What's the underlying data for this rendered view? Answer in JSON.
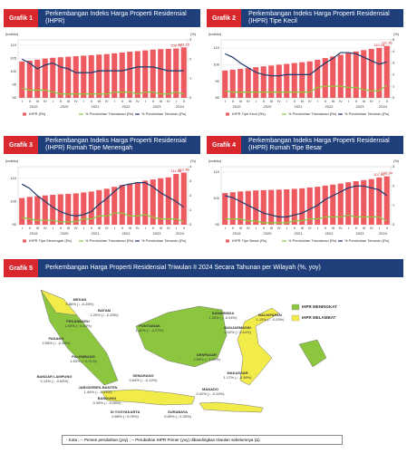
{
  "chart_data": [
    {
      "type": "combo",
      "label": "Grafik 1",
      "title": "Perkembangan Indeks Harga Properti Residensial (IHPR)",
      "ylabel": "(indeks)",
      "y2label": "(%)",
      "categories": [
        "I",
        "II",
        "III",
        "IV",
        "I",
        "II",
        "III",
        "IV",
        "I",
        "II",
        "III",
        "IV",
        "I",
        "II",
        "III",
        "IV",
        "I",
        "II",
        "III",
        "IV",
        "I",
        "II"
      ],
      "year_labels": [
        "2019",
        "2020",
        "2021",
        "2022",
        "2023",
        "2024"
      ],
      "ylim": [
        90,
        112
      ],
      "yticks": [
        90,
        95,
        100,
        105,
        110
      ],
      "y2lim": [
        0,
        3
      ],
      "y2ticks": [
        0,
        1,
        2,
        3
      ],
      "grid": true,
      "series": [
        {
          "name": "IHPR (Rs)",
          "type": "bar",
          "color": "#ee5a5f",
          "values": [
            103.8,
            104.1,
            104.5,
            104.9,
            105.2,
            105.4,
            105.6,
            105.8,
            106,
            106.2,
            106.4,
            106.6,
            106.9,
            107.2,
            107.5,
            107.7,
            108,
            108.3,
            108.5,
            108.6,
            108.72,
            109.15
          ],
          "value_labels": [
            null,
            null,
            null,
            null,
            null,
            null,
            null,
            null,
            null,
            null,
            null,
            null,
            null,
            null,
            null,
            null,
            null,
            null,
            null,
            null,
            "108.72",
            "109.15"
          ]
        },
        {
          "name": "% Perubahan Triwulanan (Rs)",
          "type": "line",
          "axis": "y2",
          "color": "#8cc63f",
          "values": [
            0.5,
            0.4,
            0.4,
            0.4,
            0.3,
            0.2,
            0.2,
            0.2,
            0.2,
            0.2,
            0.2,
            0.2,
            0.3,
            0.3,
            0.3,
            0.2,
            0.3,
            0.3,
            0.2,
            0.2,
            0.3,
            0.2
          ]
        },
        {
          "name": "% Perubahan Tahunan (Rs)",
          "type": "line",
          "axis": "y2",
          "color": "#1f3a6e",
          "values": [
            2,
            1.8,
            1.5,
            1.7,
            1.8,
            1.6,
            1.5,
            1.3,
            1.3,
            1.3,
            1.4,
            1.4,
            1.4,
            1.4,
            1.5,
            1.6,
            1.6,
            1.6,
            1.5,
            1.4,
            1.4,
            1.4
          ]
        }
      ]
    },
    {
      "type": "combo",
      "label": "Grafik 2",
      "title": "Perkembangan Indeks Harga Properti Residensial (IHPR) Tipe Kecil",
      "ylabel": "(indeks)",
      "y2label": "(%)",
      "categories": [
        "I",
        "II",
        "III",
        "IV",
        "I",
        "II",
        "III",
        "IV",
        "I",
        "II",
        "III",
        "IV",
        "I",
        "II",
        "III",
        "IV",
        "I",
        "II",
        "III",
        "IV",
        "I",
        "II"
      ],
      "year_labels": [
        "2019",
        "2020",
        "2021",
        "2022",
        "2023",
        "2024"
      ],
      "ylim": [
        80,
        115
      ],
      "yticks": [
        80,
        90,
        100,
        110
      ],
      "y2lim": [
        0,
        5
      ],
      "y2ticks": [
        0,
        1,
        2,
        3,
        4,
        5
      ],
      "grid": true,
      "series": [
        {
          "name": "IHPR Tipe Kecil (Rs)",
          "type": "bar",
          "color": "#ee5a5f",
          "values": [
            96.5,
            97,
            97.5,
            98,
            98.5,
            99,
            99.5,
            100,
            100.5,
            101,
            101.5,
            102,
            103,
            104,
            105,
            106,
            107,
            108,
            108.8,
            109.5,
            110.16,
            111.36
          ],
          "value_labels": [
            null,
            null,
            null,
            null,
            null,
            null,
            null,
            null,
            null,
            null,
            null,
            null,
            null,
            null,
            null,
            null,
            null,
            null,
            null,
            null,
            "110.16",
            "111.36"
          ]
        },
        {
          "name": "% Perubahan Triwulanan (Rs)",
          "type": "line",
          "axis": "y2",
          "color": "#8cc63f",
          "values": [
            0.6,
            0.5,
            0.5,
            0.5,
            0.5,
            0.5,
            0.5,
            0.5,
            0.5,
            0.5,
            0.5,
            0.5,
            0.9,
            1,
            1,
            1,
            0.9,
            0.9,
            0.7,
            0.6,
            0.6,
            1.1
          ]
        },
        {
          "name": "% Perubahan Tahunan (Rs)",
          "type": "line",
          "axis": "y2",
          "color": "#1f3a6e",
          "values": [
            3.8,
            3.5,
            3,
            2.6,
            2.2,
            2,
            1.9,
            1.9,
            2,
            2,
            2,
            2,
            2.5,
            3,
            3.4,
            3.9,
            3.9,
            3.8,
            3.5,
            3.2,
            2.9,
            3.1
          ]
        }
      ]
    },
    {
      "type": "combo",
      "label": "Grafik 3",
      "title": "Perkembangan Indeks Harga Properti Residensial (IHPR) Rumah Tipe Menengah",
      "ylabel": "(indeks)",
      "y2label": "(%)",
      "categories": [
        "I",
        "II",
        "III",
        "IV",
        "I",
        "II",
        "III",
        "IV",
        "I",
        "II",
        "III",
        "IV",
        "I",
        "II",
        "III",
        "IV",
        "I",
        "II",
        "III",
        "IV",
        "I",
        "II"
      ],
      "year_labels": [
        "2019",
        "2020",
        "2021",
        "2022",
        "2023",
        "2024"
      ],
      "ylim": [
        90,
        115
      ],
      "yticks": [
        90,
        100,
        110
      ],
      "y2lim": [
        0,
        4
      ],
      "y2ticks": [
        0,
        1,
        2,
        3,
        4
      ],
      "grid": true,
      "series": [
        {
          "name": "IHPR Tipe Menengah (Rs)",
          "type": "bar",
          "color": "#ee5a5f",
          "values": [
            101.5,
            102,
            102.3,
            102.6,
            102.9,
            103.1,
            103.3,
            103.5,
            103.9,
            104.3,
            104.9,
            105.5,
            106.3,
            107.1,
            107.7,
            108.3,
            109,
            109.5,
            110,
            110.4,
            111.86,
            112.46
          ],
          "value_labels": [
            null,
            null,
            null,
            null,
            null,
            null,
            null,
            null,
            null,
            null,
            null,
            null,
            null,
            null,
            null,
            null,
            null,
            null,
            null,
            null,
            "111.86",
            "112.46"
          ]
        },
        {
          "name": "% Perubahan Triwulanan (Rs)",
          "type": "line",
          "axis": "y2",
          "color": "#8cc63f",
          "values": [
            0.5,
            0.4,
            0.3,
            0.3,
            0.3,
            0.2,
            0.2,
            0.2,
            0.4,
            0.4,
            0.6,
            0.6,
            0.8,
            0.8,
            0.6,
            0.6,
            0.7,
            0.5,
            0.4,
            0.4,
            0.4,
            0.2
          ]
        },
        {
          "name": "% Perubahan Tahunan (Rs)",
          "type": "line",
          "axis": "y2",
          "color": "#1f3a6e",
          "values": [
            2.8,
            2.5,
            2,
            1.6,
            1.2,
            0.9,
            0.7,
            0.6,
            0.7,
            0.9,
            1.4,
            1.8,
            2.3,
            2.7,
            2.8,
            2.9,
            2.9,
            2.6,
            2.2,
            1.9,
            1.6,
            1.2
          ]
        }
      ]
    },
    {
      "type": "combo",
      "label": "Grafik 4",
      "title": "Perkembangan Indeks Harga Properti Residensial (IHPR) Rumah Tipe Besar",
      "ylabel": "(indeks)",
      "y2label": "(%)",
      "categories": [
        "I",
        "II",
        "III",
        "IV",
        "I",
        "II",
        "III",
        "IV",
        "I",
        "II",
        "III",
        "IV",
        "I",
        "II",
        "III",
        "IV",
        "I",
        "II",
        "III",
        "IV",
        "I",
        "II"
      ],
      "year_labels": [
        "2019",
        "2020",
        "2021",
        "2022",
        "2023",
        "2024"
      ],
      "ylim": [
        90,
        112
      ],
      "yticks": [
        90,
        100,
        110
      ],
      "y2lim": [
        0,
        3
      ],
      "y2ticks": [
        0,
        1,
        2,
        3
      ],
      "grid": true,
      "series": [
        {
          "name": "IHPR Tipe Besar (Rs)",
          "type": "bar",
          "color": "#ee5a5f",
          "values": [
            102,
            102.3,
            102.6,
            102.8,
            103,
            103.1,
            103.2,
            103.3,
            103.4,
            103.6,
            103.8,
            104.1,
            104.4,
            104.8,
            105.2,
            105.6,
            106.1,
            106.5,
            106.9,
            107.3,
            107.92,
            108.34
          ],
          "value_labels": [
            null,
            null,
            null,
            null,
            null,
            null,
            null,
            null,
            null,
            null,
            null,
            null,
            null,
            null,
            null,
            null,
            null,
            null,
            null,
            null,
            "107.92",
            "108.34"
          ]
        },
        {
          "name": "% Perubahan Triwulanan (Rs)",
          "type": "line",
          "axis": "y2",
          "color": "#8cc63f",
          "values": [
            0.3,
            0.3,
            0.3,
            0.2,
            0.2,
            0.1,
            0.1,
            0.1,
            0.1,
            0.2,
            0.2,
            0.3,
            0.3,
            0.4,
            0.4,
            0.4,
            0.5,
            0.4,
            0.4,
            0.4,
            0.4,
            0.2
          ]
        },
        {
          "name": "% Perubahan Tahunan (Rs)",
          "type": "line",
          "axis": "y2",
          "color": "#1f3a6e",
          "values": [
            1.5,
            1.4,
            1.2,
            1,
            0.8,
            0.6,
            0.5,
            0.4,
            0.4,
            0.5,
            0.6,
            0.8,
            1,
            1.3,
            1.5,
            1.7,
            1.9,
            2,
            2,
            1.9,
            1.8,
            1.5
          ]
        }
      ]
    }
  ],
  "map": {
    "label": "Grafik 5",
    "title": "Perkembangan Harga Properti Residensial Triwulan II 2024 Secara Tahunan per Wilayah (%, yoy)",
    "legend": [
      {
        "name": "IHPR MENINGKAT",
        "color": "#8cc63f"
      },
      {
        "name": "IHPR MELAMBAT",
        "color": "#f2ec4b"
      }
    ],
    "regions": [
      {
        "name": "MEDAN",
        "text": "0.86% (↓ -0.25%)"
      },
      {
        "name": "BATAM",
        "text": "2.25% (↓ -2.33%)"
      },
      {
        "name": "PEKANBARU",
        "text": "1.69% (↑ 0.82%)"
      },
      {
        "name": "PADANG",
        "text": "2.55% (↓ -0.08%)"
      },
      {
        "name": "PALEMBANG",
        "text": "1.53% (↑ 0.21%)"
      },
      {
        "name": "BANDAR LAMPUNG",
        "text": "0.14% (↓ -0.64%)"
      },
      {
        "name": "JABODEBEK-BANTEN",
        "text": "1.44% (↓ -1.54%)"
      },
      {
        "name": "BANDUNG",
        "text": "0.26% (↓ -0.08%)"
      },
      {
        "name": "SEMARANG",
        "text": "0.64% (↓ -0.12%)"
      },
      {
        "name": "DI YOGYAKARTA",
        "text": "0.88% (↓ 0.09%)"
      },
      {
        "name": "SURABAYA",
        "text": "0.89% (↓ 0.35%)"
      },
      {
        "name": "PONTIANAK",
        "text": "1.40% (↓ -0.27%)"
      },
      {
        "name": "SAMARINDA",
        "text": "1.26% (↓ -0.04%)"
      },
      {
        "name": "BALIKPAPAN",
        "text": "1.15% (↓ -0.03%)"
      },
      {
        "name": "BANJARMASIN",
        "text": "1.52% (↑ 0.44%)"
      },
      {
        "name": "DENPASAR",
        "text": "1.89% (↑ 1.96%)"
      },
      {
        "name": "MAKASSAR",
        "text": "1.17% (↓ -0.36%)"
      },
      {
        "name": "MANADO",
        "text": "0.42% (↓ -0.24%)"
      }
    ],
    "footnote": "- Kota ; -- Persen perubahan (yoy) ; -- Perubahan IHPR Primer (yoy) dibandingkan triwulan sebelumnya (Δ)"
  }
}
